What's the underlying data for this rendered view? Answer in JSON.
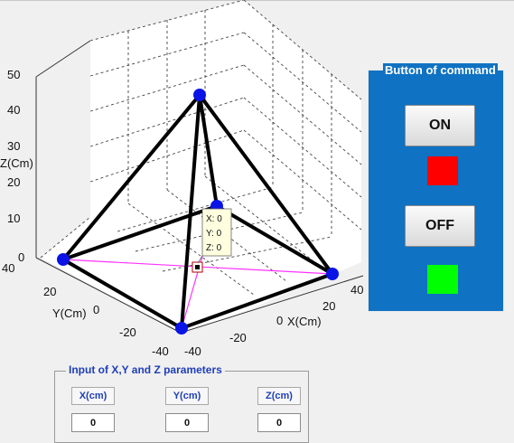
{
  "plot": {
    "zlabel": "Z(Cm)",
    "ylabel": "Y(Cm)",
    "xlabel": "X(Cm)",
    "z_ticks": [
      "50",
      "40",
      "30",
      "20",
      "10",
      "0"
    ],
    "y_ticks": [
      "40",
      "20",
      "0",
      "-20",
      "-40"
    ],
    "x_ticks": [
      "-40",
      "-20",
      "0",
      "20",
      "40"
    ],
    "datatip": {
      "x": "X: 0",
      "y": "Y: 0",
      "z": "Z: 0"
    },
    "colors": {
      "edges": "#000000",
      "vertices": "#0a14e6",
      "diagonals": "#ff33ff",
      "grid": "#333333"
    }
  },
  "command_panel": {
    "title": "Button of command",
    "on_label": "ON",
    "off_label": "OFF",
    "on_indicator_color": "#ff0000",
    "off_indicator_color": "#00ff00",
    "background": "#0f72c2"
  },
  "input_panel": {
    "title": "Input of X,Y and Z parameters",
    "x_label": "X(cm)",
    "y_label": "Y(cm)",
    "z_label": "Z(cm)",
    "x_value": "0",
    "y_value": "0",
    "z_value": "0"
  }
}
